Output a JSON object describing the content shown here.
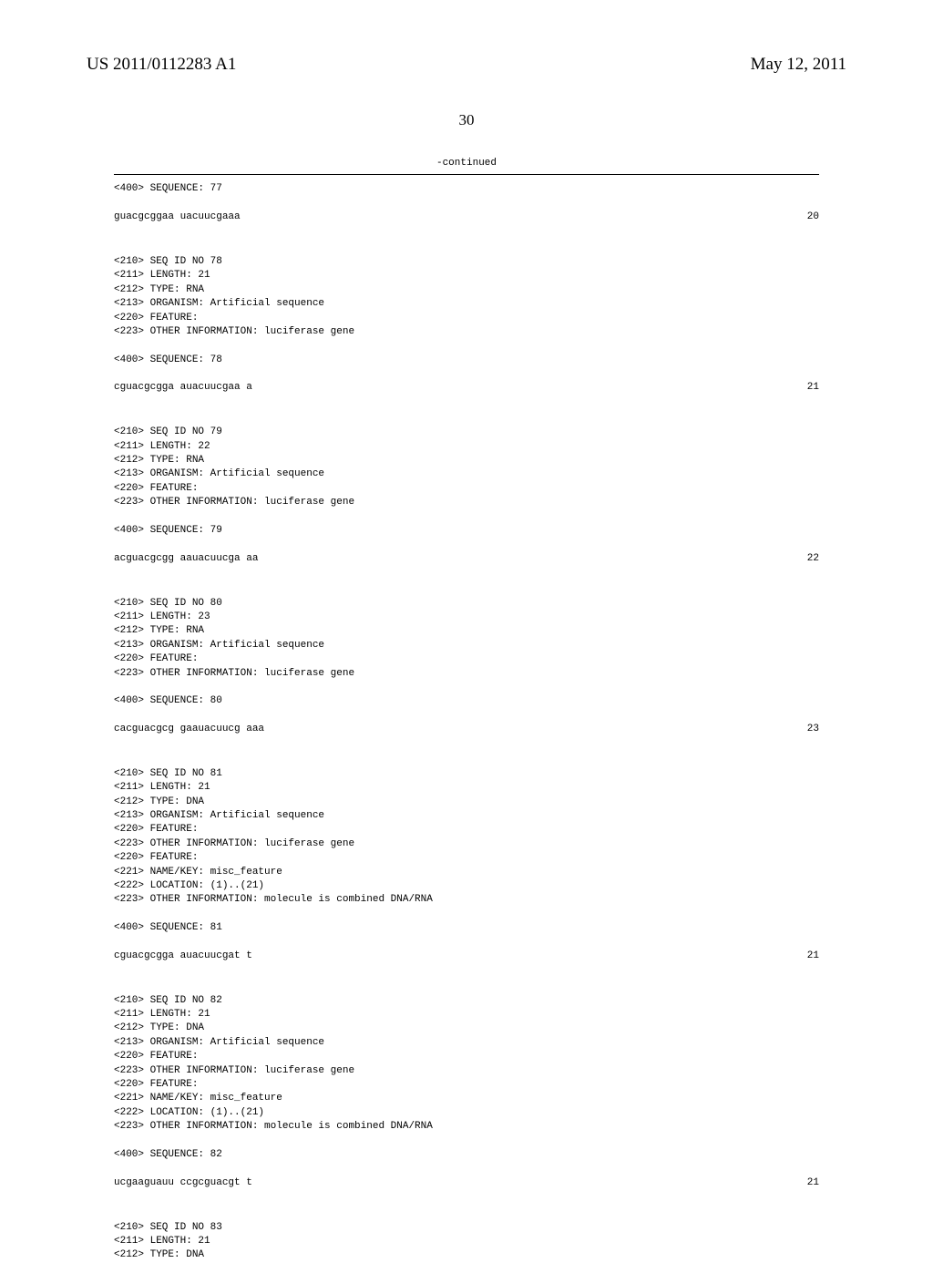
{
  "header": {
    "pub_number": "US 2011/0112283 A1",
    "pub_date": "May 12, 2011"
  },
  "page_number": "30",
  "continued_label": "-continued",
  "sequences": [
    {
      "pre_lines": [
        "<400> SEQUENCE: 77"
      ],
      "sequence": "guacgcggaa uacuucgaaa",
      "length": "20"
    },
    {
      "pre_lines": [
        "<210> SEQ ID NO 78",
        "<211> LENGTH: 21",
        "<212> TYPE: RNA",
        "<213> ORGANISM: Artificial sequence",
        "<220> FEATURE:",
        "<223> OTHER INFORMATION: luciferase gene",
        "",
        "<400> SEQUENCE: 78"
      ],
      "sequence": "cguacgcgga auacuucgaa a",
      "length": "21"
    },
    {
      "pre_lines": [
        "<210> SEQ ID NO 79",
        "<211> LENGTH: 22",
        "<212> TYPE: RNA",
        "<213> ORGANISM: Artificial sequence",
        "<220> FEATURE:",
        "<223> OTHER INFORMATION: luciferase gene",
        "",
        "<400> SEQUENCE: 79"
      ],
      "sequence": "acguacgcgg aauacuucga aa",
      "length": "22"
    },
    {
      "pre_lines": [
        "<210> SEQ ID NO 80",
        "<211> LENGTH: 23",
        "<212> TYPE: RNA",
        "<213> ORGANISM: Artificial sequence",
        "<220> FEATURE:",
        "<223> OTHER INFORMATION: luciferase gene",
        "",
        "<400> SEQUENCE: 80"
      ],
      "sequence": "cacguacgcg gaauacuucg aaa",
      "length": "23"
    },
    {
      "pre_lines": [
        "<210> SEQ ID NO 81",
        "<211> LENGTH: 21",
        "<212> TYPE: DNA",
        "<213> ORGANISM: Artificial sequence",
        "<220> FEATURE:",
        "<223> OTHER INFORMATION: luciferase gene",
        "<220> FEATURE:",
        "<221> NAME/KEY: misc_feature",
        "<222> LOCATION: (1)..(21)",
        "<223> OTHER INFORMATION: molecule is combined DNA/RNA",
        "",
        "<400> SEQUENCE: 81"
      ],
      "sequence": "cguacgcgga auacuucgat t",
      "length": "21"
    },
    {
      "pre_lines": [
        "<210> SEQ ID NO 82",
        "<211> LENGTH: 21",
        "<212> TYPE: DNA",
        "<213> ORGANISM: Artificial sequence",
        "<220> FEATURE:",
        "<223> OTHER INFORMATION: luciferase gene",
        "<220> FEATURE:",
        "<221> NAME/KEY: misc_feature",
        "<222> LOCATION: (1)..(21)",
        "<223> OTHER INFORMATION: molecule is combined DNA/RNA",
        "",
        "<400> SEQUENCE: 82"
      ],
      "sequence": "ucgaaguauu ccgcguacgt t",
      "length": "21"
    },
    {
      "pre_lines": [
        "<210> SEQ ID NO 83",
        "<211> LENGTH: 21",
        "<212> TYPE: DNA"
      ],
      "sequence": null,
      "length": null
    }
  ]
}
